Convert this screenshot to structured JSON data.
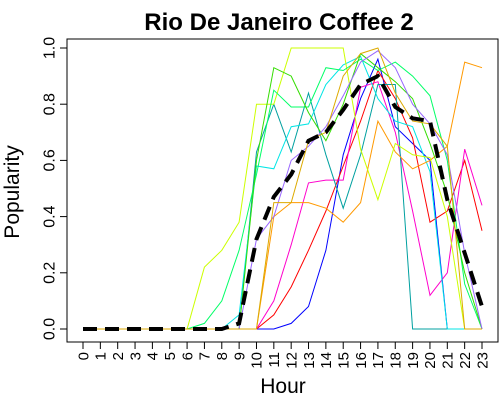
{
  "chart_data": {
    "type": "line",
    "title": "Rio De Janeiro Coffee 2",
    "xlabel": "Hour",
    "ylabel": "Popularity",
    "x": [
      0,
      1,
      2,
      3,
      4,
      5,
      6,
      7,
      8,
      9,
      10,
      11,
      12,
      13,
      14,
      15,
      16,
      17,
      18,
      19,
      20,
      21,
      22,
      23
    ],
    "x_tick_labels": [
      "0",
      "1",
      "2",
      "3",
      "4",
      "5",
      "6",
      "7",
      "8",
      "9",
      "10",
      "11",
      "12",
      "13",
      "14",
      "15",
      "16",
      "17",
      "18",
      "19",
      "20",
      "21",
      "22",
      "23"
    ],
    "xlim": [
      0,
      23
    ],
    "ylim": [
      0,
      1
    ],
    "y_ticks": [
      0,
      0.2,
      0.4,
      0.6,
      0.8,
      1
    ],
    "y_tick_labels": [
      "0.0",
      "0.2",
      "0.4",
      "0.6",
      "0.8",
      "1.0"
    ],
    "grid": false,
    "series": [
      {
        "color": "#0000ff",
        "values": [
          0,
          0,
          0,
          0,
          0,
          0,
          0,
          0,
          0,
          0,
          0,
          0,
          0.02,
          0.08,
          0.28,
          0.62,
          0.82,
          0.96,
          0.72,
          0.66,
          0.6,
          0,
          0,
          0
        ]
      },
      {
        "color": "#ff0000",
        "values": [
          0,
          0,
          0,
          0,
          0,
          0,
          0,
          0,
          0,
          0,
          0,
          0.05,
          0.15,
          0.28,
          0.42,
          0.58,
          0.74,
          0.92,
          0.82,
          0.68,
          0.38,
          0.42,
          0.6,
          0.35
        ]
      },
      {
        "color": "#ff00cc",
        "values": [
          0,
          0,
          0,
          0,
          0,
          0,
          0,
          0,
          0,
          0,
          0,
          0.1,
          0.3,
          0.52,
          0.53,
          0.53,
          0.86,
          0.88,
          0.7,
          0.42,
          0.12,
          0.2,
          0.64,
          0.44
        ]
      },
      {
        "color": "#00a0a0",
        "values": [
          0,
          0,
          0,
          0,
          0,
          0,
          0,
          0,
          0,
          0,
          0.63,
          0.8,
          0.63,
          0.84,
          0.62,
          0.43,
          0.62,
          0.87,
          0.87,
          0,
          0,
          0,
          0,
          0
        ]
      },
      {
        "color": "#00e5e5",
        "values": [
          0,
          0,
          0,
          0,
          0,
          0,
          0,
          0,
          0,
          0.05,
          0.58,
          0.57,
          0.72,
          0.73,
          0.87,
          0.94,
          0.97,
          0.82,
          0.74,
          0.72,
          0.56,
          0,
          0,
          0
        ]
      },
      {
        "color": "#ff9900",
        "values": [
          0,
          0,
          0,
          0,
          0,
          0,
          0,
          0,
          0,
          0,
          0,
          0.4,
          0.45,
          0.45,
          0.43,
          0.38,
          0.45,
          0.74,
          0.63,
          0.57,
          0.6,
          0.65,
          0.95,
          0.93
        ]
      },
      {
        "color": "#ccff00",
        "values": [
          0,
          0,
          0,
          0,
          0,
          0,
          0,
          0.22,
          0.28,
          0.38,
          0.8,
          0.8,
          1.0,
          1.0,
          1.0,
          1.0,
          0.64,
          0.46,
          0.66,
          0.62,
          0.61,
          0.4,
          0,
          0
        ]
      },
      {
        "color": "#00ff66",
        "values": [
          0,
          0,
          0,
          0,
          0,
          0,
          0,
          0.02,
          0.1,
          0.28,
          0.55,
          0.85,
          0.79,
          0.79,
          0.93,
          0.92,
          0.96,
          0.92,
          0.95,
          0.9,
          0.83,
          0.6,
          0.16,
          0
        ]
      },
      {
        "color": "#33dd00",
        "values": [
          0,
          0,
          0,
          0,
          0,
          0,
          0,
          0,
          0,
          0,
          0.6,
          0.93,
          0.9,
          0.77,
          0.67,
          0.8,
          0.98,
          0.93,
          0.88,
          0.82,
          0.66,
          0.48,
          0.2,
          0
        ]
      },
      {
        "color": "#9966ff",
        "values": [
          0,
          0,
          0,
          0,
          0,
          0,
          0,
          0,
          0,
          0,
          0.32,
          0.4,
          0.6,
          0.65,
          0.72,
          0.83,
          0.95,
          0.99,
          0.93,
          0.8,
          0.73,
          0.62,
          0.27,
          0
        ]
      },
      {
        "color": "#ddaa00",
        "values": [
          0,
          0,
          0,
          0,
          0,
          0,
          0,
          0,
          0,
          0,
          0,
          0.45,
          0.45,
          0.67,
          0.7,
          0.9,
          0.98,
          1.0,
          0.84,
          0.74,
          0.73,
          0.65,
          0,
          0
        ]
      }
    ],
    "average_series": {
      "color": "#000000",
      "style": "dashed",
      "values": [
        0,
        0,
        0,
        0,
        0,
        0,
        0,
        0,
        0,
        0.02,
        0.32,
        0.47,
        0.55,
        0.67,
        0.7,
        0.78,
        0.87,
        0.9,
        0.79,
        0.75,
        0.74,
        0.46,
        0.27,
        0.08
      ]
    }
  }
}
